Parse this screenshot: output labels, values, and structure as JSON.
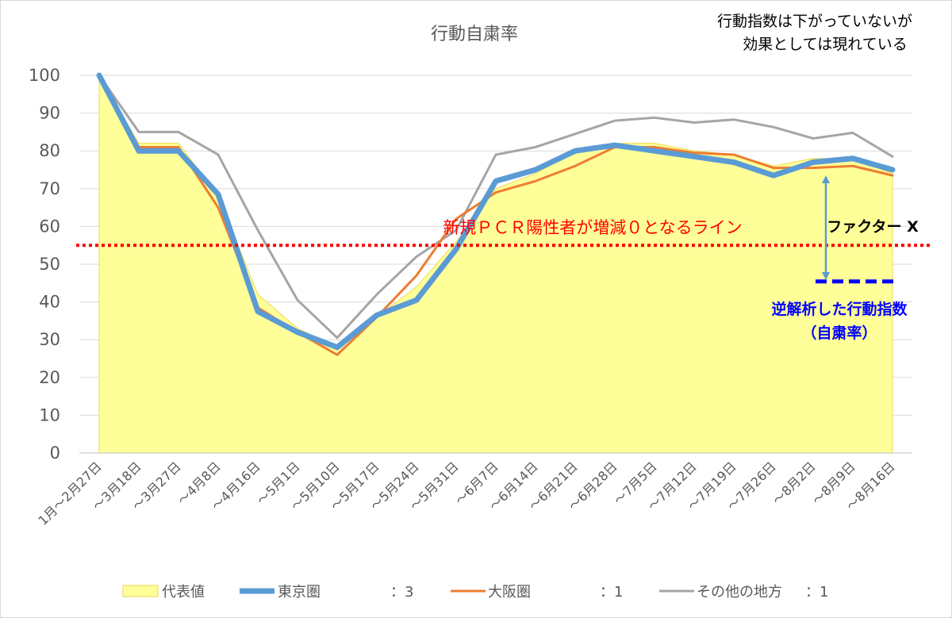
{
  "chart_data": {
    "type": "line",
    "title": "行動自粛率",
    "ylim": [
      0,
      100
    ],
    "yticks": [
      0,
      10,
      20,
      30,
      40,
      50,
      60,
      70,
      80,
      90,
      100
    ],
    "grid": true,
    "legend_position": "bottom",
    "categories": [
      "1月～2月27日",
      "～3月18日",
      "～3月27日",
      "～4月8日",
      "～4月16日",
      "～5月1日",
      "～5月10日",
      "～5月17日",
      "～5月24日",
      "～5月31日",
      "～6月7日",
      "～6月14日",
      "～6月21日",
      "～6月28日",
      "～7月5日",
      "～7月12日",
      "～7月19日",
      "～7月26日",
      "～8月2日",
      "～8月9日",
      "～8月16日"
    ],
    "series": [
      {
        "name": "代表値",
        "type": "area",
        "color": "#ffff99",
        "values": [
          100,
          82,
          82,
          68,
          42,
          33,
          28,
          36,
          44,
          56,
          70,
          74,
          80,
          82,
          82,
          80,
          79,
          76,
          78,
          78,
          74
        ]
      },
      {
        "name": "その他の地方",
        "ratio": "：1",
        "color": "#a5a5a5",
        "values": [
          100,
          85,
          85,
          79,
          59,
          40.5,
          30.5,
          42,
          52,
          59,
          79,
          81,
          84.5,
          88,
          88.8,
          87.5,
          88.3,
          86.3,
          83.3,
          84.8,
          78.5
        ]
      },
      {
        "name": "大阪圏",
        "ratio": "：1",
        "color": "#ed7d31",
        "values": [
          100,
          81,
          81,
          65,
          38.5,
          32,
          26,
          36,
          47,
          62,
          69,
          72,
          76,
          81,
          81,
          79.5,
          79,
          75.5,
          75.5,
          76,
          73.5
        ]
      },
      {
        "name": "東京圏",
        "ratio": "：3",
        "color": "#5b9bd5",
        "values": [
          100,
          80,
          80,
          68.5,
          37.5,
          32,
          28,
          36.5,
          40.5,
          54,
          72,
          75,
          80,
          81.5,
          80,
          78.5,
          77,
          73.5,
          77,
          78,
          75
        ]
      }
    ],
    "reference_line": {
      "value": 55,
      "label": "新規ＰＣＲ陽性者が増減０となるライン",
      "color": "#ff0000"
    },
    "inverse_line": {
      "value": 45,
      "label_line1": "逆解析した行動指数",
      "label_line2": "（自粛率）",
      "color": "#0000ff"
    },
    "factor_label": "ファクター X",
    "note_line1": "行動指数は下がっていないが",
    "note_line2": "効果としては現れている"
  }
}
